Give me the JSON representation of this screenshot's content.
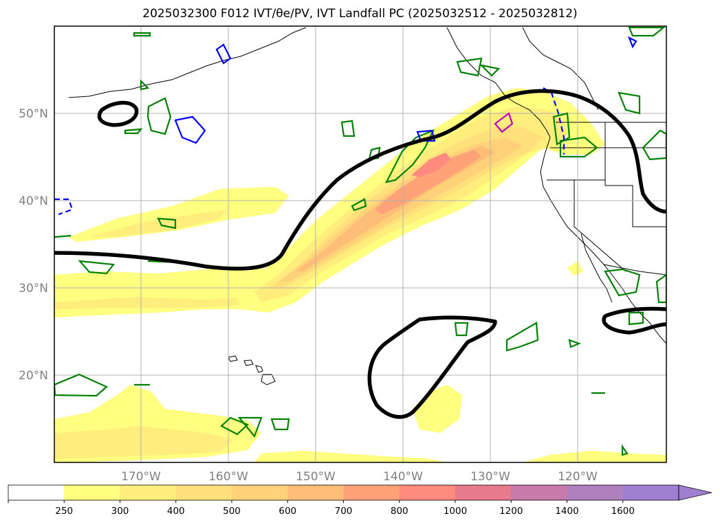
{
  "map": {
    "title": "2025032300 F012 IVT/θe/PV, IVT Landfall PC (2025032512 - 2025032812)",
    "lat_labels": [
      "50°N",
      "40°N",
      "30°N",
      "20°N"
    ],
    "lon_labels": [
      "170°W",
      "160°W",
      "150°W",
      "140°W",
      "130°W",
      "120°W"
    ],
    "grid": true,
    "colorbar": {
      "ticks": [
        "250",
        "300",
        "400",
        "500",
        "600",
        "700",
        "800",
        "1000",
        "1200",
        "1400",
        "1600"
      ],
      "colors": [
        "#ffffff",
        "#ffff80",
        "#ffee7d",
        "#ffe07a",
        "#ffd27a",
        "#ffbe78",
        "#ffa278",
        "#ff8a7e",
        "#e87a8e",
        "#c87aaa",
        "#b07fbe",
        "#9f7fd0"
      ],
      "extend": "max"
    },
    "contour_colors": {
      "theta_e": "#000000",
      "pv_positive": "#008000",
      "pv_negative": "#0000ff",
      "landfall": "#c000c0"
    }
  }
}
